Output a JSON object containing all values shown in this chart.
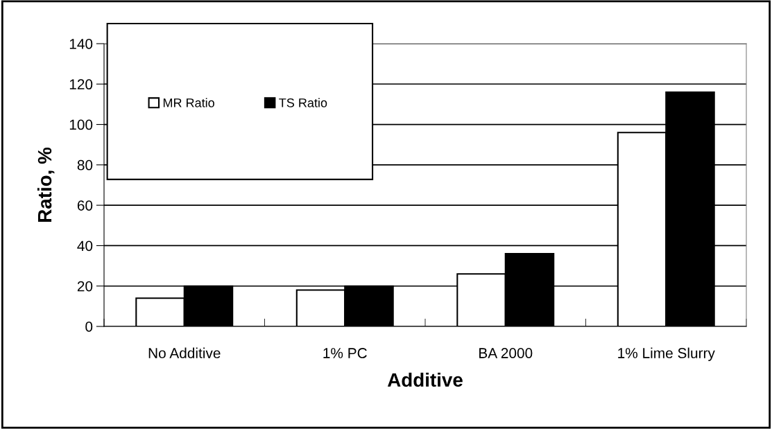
{
  "chart_data": {
    "type": "bar",
    "xlabel": "Additive",
    "ylabel": "Ratio, %",
    "categories": [
      "No Additive",
      "1% PC",
      "BA 2000",
      "1% Lime Slurry"
    ],
    "series": [
      {
        "name": "MR Ratio",
        "color": "#ffffff",
        "values": [
          14,
          18,
          26,
          96
        ]
      },
      {
        "name": "TS Ratio",
        "color": "#000000",
        "values": [
          20,
          20,
          36,
          116
        ]
      }
    ],
    "ylim": [
      0,
      140
    ],
    "yticks": [
      0,
      20,
      40,
      60,
      80,
      100,
      120,
      140
    ],
    "grid": "y",
    "legend": "top left"
  }
}
